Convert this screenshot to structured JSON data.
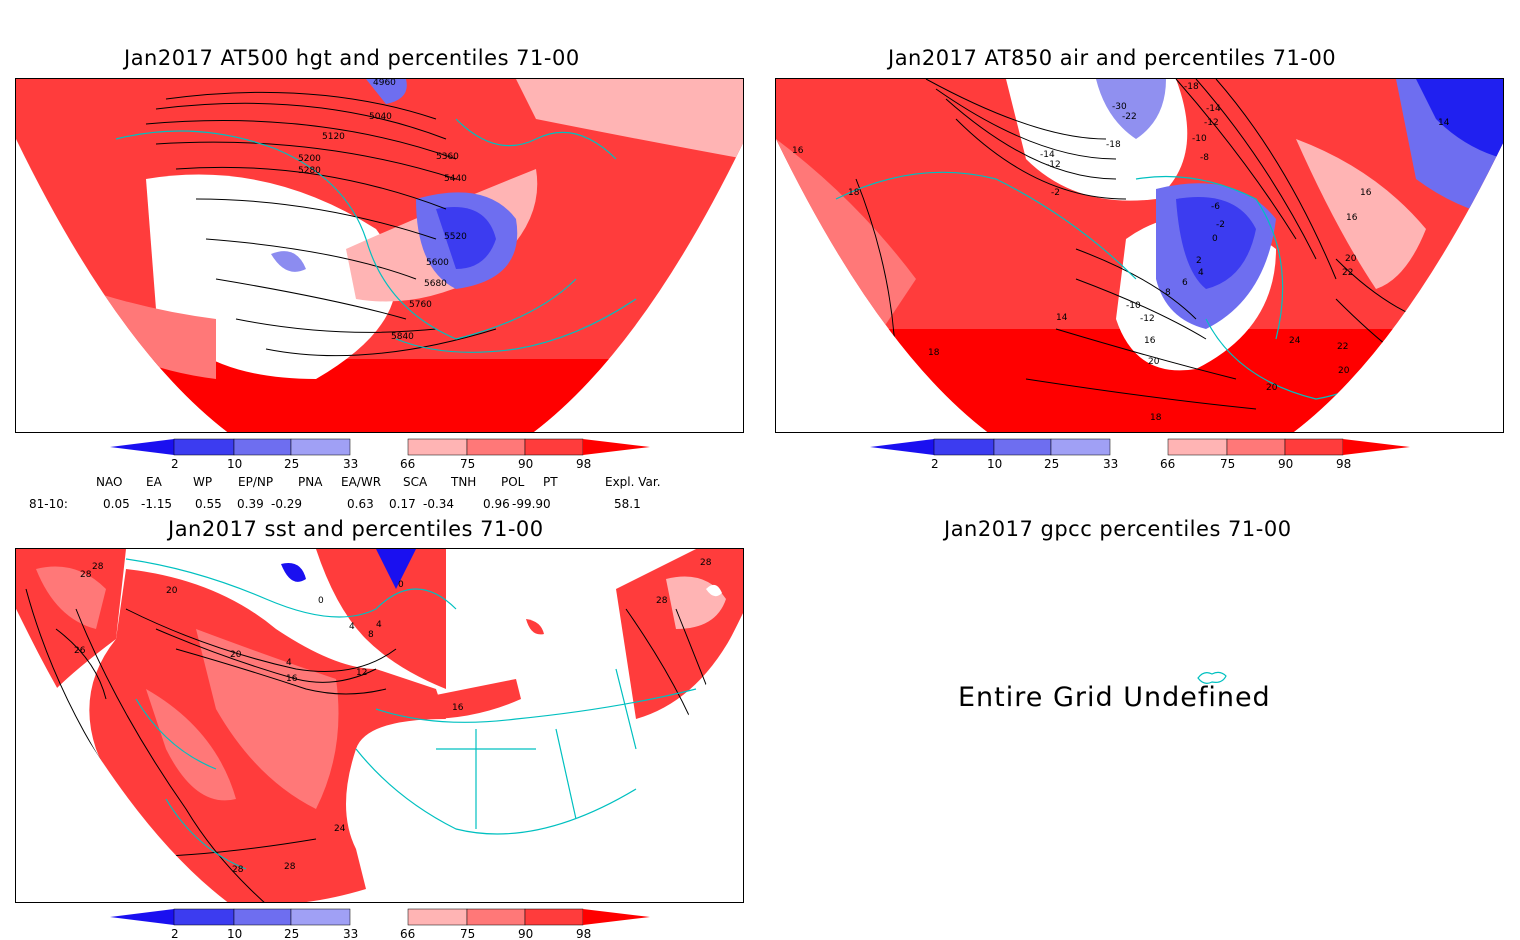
{
  "panels": [
    {
      "title": "Jan2017 AT500 hgt and percentiles 71-00",
      "contour_labels": [
        "4960",
        "5040",
        "5120",
        "5200",
        "5280",
        "5360",
        "5440",
        "5520",
        "5600",
        "5680",
        "5760",
        "5840"
      ]
    },
    {
      "title": "Jan2017 AT850 air and percentiles 71-00",
      "contour_labels": [
        "-18",
        "-14",
        "-12",
        "-10",
        "-8",
        "-30",
        "-22",
        "-18",
        "-14",
        "-12",
        "-2",
        "16",
        "18",
        "14",
        "18",
        "-6",
        "-2",
        "0",
        "2",
        "4",
        "6",
        "8",
        "-10",
        "-12",
        "16",
        "20",
        "14",
        "16",
        "16",
        "20",
        "22",
        "24",
        "22",
        "20",
        "20",
        "18",
        "18"
      ]
    },
    {
      "title": "Jan2017 sst and percentiles 71-00",
      "contour_labels": [
        "28",
        "28",
        "20",
        "26",
        "20",
        "16",
        "4",
        "12",
        "0",
        "4",
        "4",
        "8",
        "0",
        "16",
        "24",
        "28",
        "28",
        "28",
        "28"
      ]
    },
    {
      "title": "Jan2017 gpcc percentiles 71-00",
      "message": "Entire Grid Undefined"
    }
  ],
  "colorbar": {
    "ticks": [
      "2",
      "10",
      "25",
      "33",
      "66",
      "75",
      "90",
      "98"
    ],
    "colors": [
      "#1a10f0",
      "#3c3cf0",
      "#6e6ef0",
      "#a0a0f5",
      "#ffffff",
      "#ffb4b4",
      "#ff7878",
      "#ff3c3c",
      "#ff0000"
    ]
  },
  "indices": {
    "headers": [
      "NAO",
      "EA",
      "WP",
      "EP/NP",
      "PNA",
      "EA/WR",
      "SCA",
      "TNH",
      "POL",
      "PT",
      "Expl. Var."
    ],
    "row_label": "81-10:",
    "values": [
      "0.05",
      "-1.15",
      "0.55",
      "0.39",
      "-0.29",
      "0.63",
      "0.17",
      "-0.34",
      "0.96",
      "-99.90",
      "58.1"
    ]
  }
}
